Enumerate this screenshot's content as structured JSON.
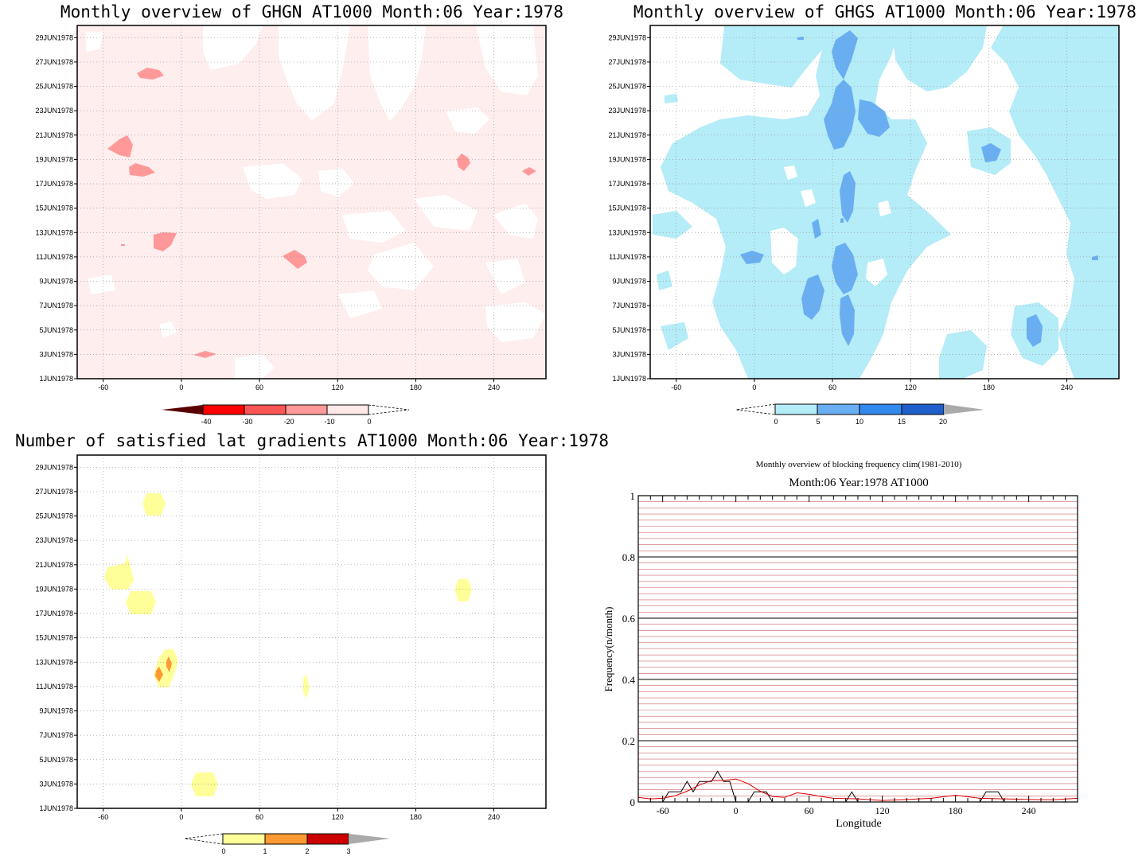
{
  "panels": [
    {
      "title": "Monthly overview of GHGN AT1000 Month:06 Year:1978",
      "colorbar": {
        "labels": [
          "-40",
          "-30",
          "-20",
          "-10",
          "0"
        ],
        "colors": [
          "#ff0000",
          "#ff5555",
          "#ff9999",
          "#ffe8e8"
        ],
        "low_arrow": "#5a0000"
      }
    },
    {
      "title": "Monthly overview of GHGS AT1000 Month:06 Year:1978",
      "colorbar": {
        "labels": [
          "0",
          "5",
          "10",
          "15",
          "20"
        ],
        "colors": [
          "#b4ecf7",
          "#6aaef2",
          "#3388ee",
          "#1f5fcc"
        ],
        "high_arrow": "#aaaaaa"
      }
    },
    {
      "title": "Number of satisfied lat gradients AT1000 Month:06 Year:1978",
      "colorbar": {
        "labels": [
          "0",
          "1",
          "2",
          "3"
        ],
        "colors": [
          "#ffff99",
          "#ff9933",
          "#cc0000"
        ],
        "high_arrow": "#aaaaaa"
      }
    }
  ],
  "hov_axes": {
    "y_labels": [
      "29JUN1978",
      "27JUN1978",
      "25JUN1978",
      "23JUN1978",
      "21JUN1978",
      "19JUN1978",
      "17JUN1978",
      "15JUN1978",
      "13JUN1978",
      "11JUN1978",
      "9JUN1978",
      "7JUN1978",
      "5JUN1978",
      "3JUN1978",
      "1JUN1978"
    ],
    "x_labels": [
      "-60",
      "0",
      "60",
      "120",
      "180",
      "240"
    ]
  },
  "chart_data": [
    {
      "type": "heatmap",
      "title": "Monthly overview of GHGN AT1000 Month:06 Year:1978",
      "x_label": "",
      "y_label": "",
      "xlim": [
        -80,
        280
      ],
      "y_range": [
        "1JUN1978",
        "30JUN1978"
      ],
      "colorbar_levels": [
        -40,
        -30,
        -20,
        -10,
        0
      ],
      "background_category": "-10 to 0 (most of domain)",
      "patches": [
        {
          "lon": -25,
          "date": "26JUN1978",
          "range": "-20 to -10"
        },
        {
          "lon": -48,
          "date": "20JUN1978",
          "range": "-20 to -10"
        },
        {
          "lon": -33,
          "date": "18JUN1978",
          "range": "-20 to -10"
        },
        {
          "lon": 216,
          "date": "19JUN1978",
          "range": "-20 to -10"
        },
        {
          "lon": 266,
          "date": "18JUN1978",
          "range": "-20 to -10"
        },
        {
          "lon": -13,
          "date": "12JUN1978",
          "range": "-20 to -10"
        },
        {
          "lon": 86,
          "date": "11JUN1978",
          "range": "-20 to -10"
        },
        {
          "lon": 17,
          "date": "3JUN1978",
          "range": "-20 to -10"
        }
      ]
    },
    {
      "type": "heatmap",
      "title": "Monthly overview of GHGS AT1000 Month:06 Year:1978",
      "x_label": "",
      "y_label": "",
      "xlim": [
        -80,
        280
      ],
      "y_range": [
        "1JUN1978",
        "30JUN1978"
      ],
      "colorbar_levels": [
        0,
        5,
        10,
        15,
        20
      ],
      "background_category": "0 to 5 (most of domain)",
      "patches": [
        {
          "lon": 75,
          "date": "27JUN1978",
          "range": "5 to 10"
        },
        {
          "lon": 63,
          "date": "22JUN1978",
          "range": "5 to 10"
        },
        {
          "lon": 95,
          "date": "22JUN1978",
          "range": "5 to 10"
        },
        {
          "lon": 180,
          "date": "19JUN1978",
          "range": "5 to 10"
        },
        {
          "lon": 71,
          "date": "15JUN1978",
          "range": "5 to 10"
        },
        {
          "lon": -4,
          "date": "11JUN1978",
          "range": "5 to 10"
        },
        {
          "lon": 44,
          "date": "7JUN1978",
          "range": "5 to 10"
        },
        {
          "lon": 68,
          "date": "10JUN1978",
          "range": "5 to 10"
        },
        {
          "lon": 72,
          "date": "6JUN1978",
          "range": "5 to 10"
        },
        {
          "lon": 215,
          "date": "4JUN1978",
          "range": "5 to 10"
        }
      ]
    },
    {
      "type": "heatmap",
      "title": "Number of satisfied lat gradients AT1000 Month:06 Year:1978",
      "x_label": "",
      "y_label": "",
      "xlim": [
        -80,
        280
      ],
      "y_range": [
        "1JUN1978",
        "30JUN1978"
      ],
      "colorbar_levels": [
        0,
        1,
        2,
        3
      ],
      "patches": [
        {
          "lon": -22,
          "date": "26JUN1978",
          "range": "0 to 1"
        },
        {
          "lon": -50,
          "date": "20JUN1978",
          "range": "0 to 1"
        },
        {
          "lon": -32,
          "date": "18JUN1978",
          "range": "0 to 1"
        },
        {
          "lon": 216,
          "date": "19JUN1978",
          "range": "0 to 1"
        },
        {
          "lon": -12,
          "date": "12JUN1978",
          "range": "0 to 1"
        },
        {
          "lon": -18,
          "date": "12JUN1978",
          "range": "1 to 2"
        },
        {
          "lon": -10,
          "date": "13JUN1978",
          "range": "1 to 2"
        },
        {
          "lon": 95,
          "date": "11JUN1978",
          "range": "0 to 1"
        },
        {
          "lon": 17,
          "date": "3JUN1978",
          "range": "0 to 1"
        }
      ]
    },
    {
      "type": "line",
      "title": "Monthly overview of blocking frequency clim(1981-2010)",
      "subtitle": "Month:06 Year:1978  AT1000",
      "xlabel": "Longitude",
      "ylabel": "Frequency(n/month)",
      "xlim": [
        -80,
        280
      ],
      "ylim": [
        0,
        1
      ],
      "x_ticks": [
        "-60",
        "0",
        "60",
        "120",
        "180",
        "240"
      ],
      "y_ticks": [
        "0",
        "0.2",
        "0.4",
        "0.6",
        "0.8",
        "1"
      ],
      "series": [
        {
          "color": "#000000",
          "x": [
            -80,
            -60,
            -55,
            -45,
            -40,
            -35,
            -30,
            -25,
            -20,
            -15,
            -10,
            -5,
            0,
            5,
            10,
            15,
            20,
            25,
            30,
            35,
            40,
            50,
            60,
            70,
            80,
            90,
            95,
            100,
            110,
            120,
            140,
            160,
            180,
            200,
            205,
            210,
            215,
            220,
            240,
            260,
            280
          ],
          "y": [
            0,
            0,
            0.033,
            0.033,
            0.067,
            0.033,
            0.067,
            0.067,
            0.067,
            0.1,
            0.067,
            0.067,
            0,
            0,
            0,
            0.033,
            0.033,
            0.033,
            0,
            0,
            0,
            0,
            0,
            0,
            0,
            0,
            0.033,
            0,
            0,
            0,
            0,
            0,
            0,
            0,
            0.033,
            0.033,
            0.033,
            0,
            0,
            0,
            0
          ]
        },
        {
          "color": "#dd0000",
          "x": [
            -80,
            -70,
            -60,
            -50,
            -40,
            -30,
            -20,
            -10,
            0,
            10,
            20,
            30,
            40,
            50,
            60,
            70,
            80,
            100,
            120,
            140,
            160,
            180,
            200,
            220,
            240,
            260,
            280
          ],
          "y": [
            0.015,
            0.01,
            0.012,
            0.02,
            0.035,
            0.055,
            0.07,
            0.07,
            0.075,
            0.06,
            0.035,
            0.018,
            0.015,
            0.03,
            0.025,
            0.018,
            0.012,
            0.01,
            0.005,
            0.008,
            0.012,
            0.022,
            0.012,
            0.01,
            0.008,
            0.007,
            0.012
          ]
        }
      ]
    }
  ]
}
